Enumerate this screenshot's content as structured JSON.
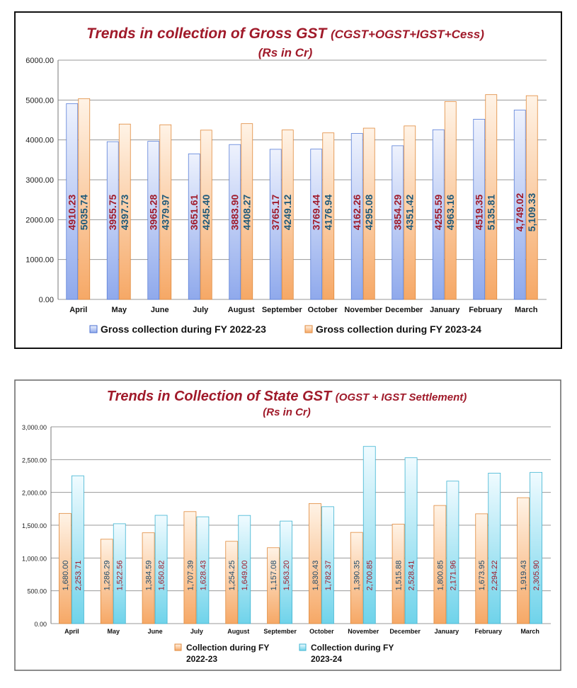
{
  "chart_data": [
    {
      "type": "bar",
      "title": "Trends in collection of Gross GST",
      "title_suffix": "(CGST+OGST+IGST+Cess)",
      "subtitle": "(Rs in Cr)",
      "categories": [
        "April",
        "May",
        "June",
        "July",
        "August",
        "September",
        "October",
        "November",
        "December",
        "January",
        "February",
        "March"
      ],
      "ylim": [
        0,
        6000
      ],
      "yticks": [
        "0.00",
        "1000.00",
        "2000.00",
        "3000.00",
        "4000.00",
        "5000.00",
        "6000.00"
      ],
      "grid": true,
      "legend_position": "bottom",
      "series": [
        {
          "name": "Gross collection during  FY 2022-23",
          "color": "#9fb8f0",
          "values": [
            4910.23,
            3955.75,
            3965.28,
            3651.61,
            3883.9,
            3765.17,
            3769.44,
            4162.26,
            3854.29,
            4255.59,
            4519.35,
            4749.02
          ],
          "labels": [
            "4910.23",
            "3955.75",
            "3965.28",
            "3651.61",
            "3883.90",
            "3765.17",
            "3769.44",
            "4162.26",
            "3854.29",
            "4255.59",
            "4519.35",
            "4,749.02"
          ],
          "label_color": "#a01a2a"
        },
        {
          "name": "Gross  collection during FY 2023-24",
          "color": "#f6b27a",
          "values": [
            5035.74,
            4397.73,
            4379.97,
            4245.4,
            4408.27,
            4249.12,
            4176.94,
            4295.08,
            4351.42,
            4963.16,
            5135.81,
            5109.33
          ],
          "labels": [
            "5035.74",
            "4397.73",
            "4379.97",
            "4245.40",
            "4408.27",
            "4249.12",
            "4176.94",
            "4295.08",
            "4351.42",
            "4963.16",
            "5135.81",
            "5,109.33"
          ],
          "label_color": "#1f5a7a"
        }
      ]
    },
    {
      "type": "bar",
      "title": "Trends in Collection of State GST",
      "title_suffix": "(OGST + IGST Settlement)",
      "subtitle": "(Rs in Cr)",
      "categories": [
        "April",
        "May",
        "June",
        "July",
        "August",
        "September",
        "October",
        "November",
        "December",
        "January",
        "February",
        "March"
      ],
      "ylim": [
        0,
        3000
      ],
      "yticks": [
        "0.00",
        "500.00",
        "1,000.00",
        "1,500.00",
        "2,000.00",
        "2,500.00",
        "3,000.00"
      ],
      "grid": true,
      "legend_position": "bottom",
      "series": [
        {
          "name": "Collection during FY 2022-23",
          "legend_lines": [
            "Collection during FY",
            "2022-23"
          ],
          "color": "#f6b27a",
          "values": [
            1680.0,
            1286.29,
            1384.59,
            1707.39,
            1254.25,
            1157.08,
            1830.43,
            1390.35,
            1515.88,
            1800.85,
            1673.95,
            1919.43
          ],
          "labels": [
            "1,680.00",
            "1,286.29",
            "1,384.59",
            "1,707.39",
            "1,254.25",
            "1,157.08",
            "1,830.43",
            "1,390.35",
            "1,515.88",
            "1,800.85",
            "1,673.95",
            "1,919.43"
          ],
          "label_color": "#1f4a6a"
        },
        {
          "name": "Collection during FY 2023-24",
          "legend_lines": [
            "Collection during FY",
            "2023-24"
          ],
          "color": "#7fd8ec",
          "values": [
            2253.71,
            1522.56,
            1650.82,
            1628.43,
            1649.0,
            1563.2,
            1782.37,
            2700.85,
            2528.41,
            2171.96,
            2294.22,
            2305.9
          ],
          "labels": [
            "2,253.71",
            "1,522.56",
            "1,650.82",
            "1,628.43",
            "1,649.00",
            "1,563.20",
            "1,782.37",
            "2,700.85",
            "2,528.41",
            "2,171.96",
            "2,294.22",
            "2,305.90"
          ],
          "label_color": "#a01a2a"
        }
      ]
    }
  ]
}
